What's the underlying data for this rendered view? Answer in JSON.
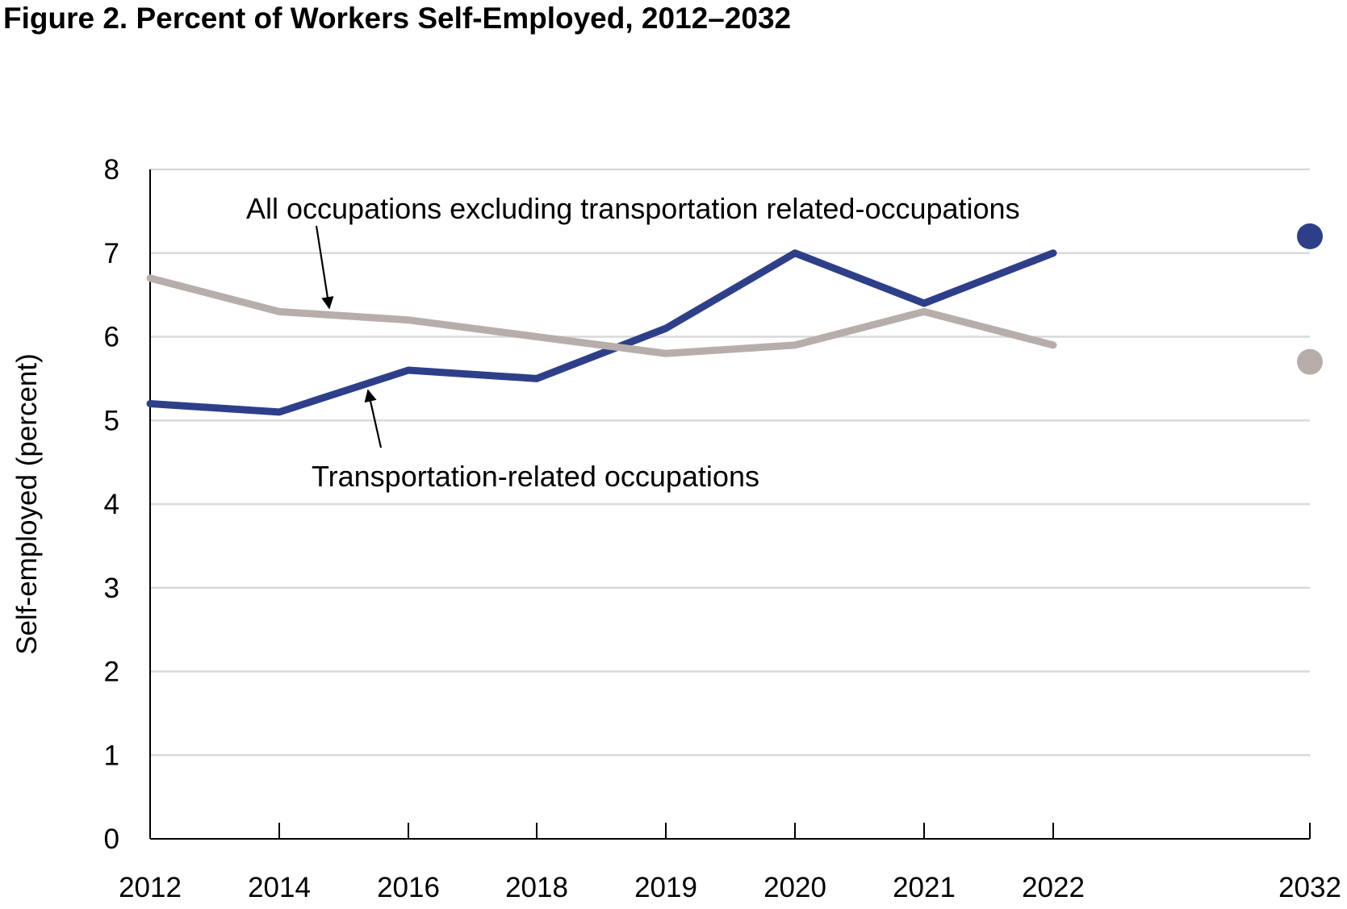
{
  "figure": {
    "title": "Figure 2. Percent of Workers Self-Employed, 2012–2032"
  },
  "chart_data": {
    "type": "line",
    "title": "Figure 2. Percent of Workers Self-Employed, 2012–2032",
    "xlabel": "",
    "ylabel": "Self-employed (percent)",
    "categories": [
      "2012",
      "2014",
      "2016",
      "2018",
      "2019",
      "2020",
      "2021",
      "2022",
      "2032"
    ],
    "yticks": [
      "0",
      "1",
      "2",
      "3",
      "4",
      "5",
      "6",
      "7",
      "8"
    ],
    "ylim": [
      0,
      8
    ],
    "grid": true,
    "legend": "none",
    "series": [
      {
        "name": "Transportation-related occupations",
        "color": "#2e3f8a",
        "values": [
          5.2,
          5.1,
          5.6,
          5.5,
          6.1,
          7.0,
          6.4,
          7.0,
          null
        ],
        "projection": {
          "category": "2032",
          "value": 7.2
        }
      },
      {
        "name": "All occupations excluding transportation related-occupations",
        "color": "#b7aeab",
        "values": [
          6.7,
          6.3,
          6.2,
          6.0,
          5.8,
          5.9,
          6.3,
          5.9,
          null
        ],
        "projection": {
          "category": "2032",
          "value": 5.7
        }
      }
    ],
    "annotations": [
      {
        "series": 1,
        "text": "All occupations excluding transportation related-occupations"
      },
      {
        "series": 0,
        "text": "Transportation-related occupations"
      }
    ]
  }
}
